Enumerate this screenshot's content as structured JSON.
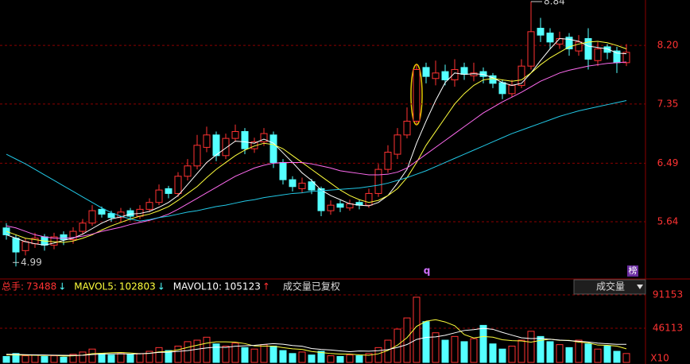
{
  "chart_data": [
    {
      "type": "candlestick",
      "open": [
        5.55,
        5.4,
        5.22,
        5.32,
        5.42,
        5.3,
        5.45,
        5.38,
        5.5,
        5.62,
        5.82,
        5.76,
        5.7,
        5.8,
        5.72,
        5.82,
        5.92,
        6.12,
        6.05,
        6.3,
        6.45,
        6.72,
        6.9,
        6.6,
        6.85,
        6.95,
        6.7,
        6.8,
        6.9,
        6.5,
        6.25,
        6.12,
        6.22,
        6.12,
        5.8,
        5.9,
        5.84,
        5.92,
        5.88,
        6.05,
        6.4,
        6.62,
        6.9,
        7.1,
        7.88,
        7.72,
        7.82,
        7.7,
        7.88,
        7.76,
        7.82,
        7.76,
        7.66,
        7.5,
        7.62,
        7.9,
        8.45,
        8.38,
        8.22,
        8.32,
        8.12,
        8.3,
        7.98,
        8.18,
        8.12,
        7.95
      ],
      "high": [
        5.62,
        5.45,
        5.4,
        5.48,
        5.46,
        5.48,
        5.5,
        5.56,
        5.68,
        5.88,
        5.86,
        5.8,
        5.84,
        5.84,
        5.88,
        5.98,
        6.18,
        6.16,
        6.36,
        6.55,
        6.9,
        7.02,
        6.95,
        6.92,
        7.05,
        7.0,
        6.86,
        7.0,
        6.95,
        6.55,
        6.3,
        6.28,
        6.26,
        6.15,
        5.95,
        5.95,
        5.96,
        5.96,
        6.12,
        6.48,
        6.75,
        7.0,
        7.3,
        7.92,
        7.95,
        7.98,
        7.92,
        8.0,
        7.95,
        7.95,
        7.88,
        7.8,
        7.7,
        7.7,
        8.0,
        8.84,
        8.6,
        8.45,
        8.4,
        8.38,
        8.35,
        8.45,
        8.25,
        8.22,
        8.18,
        8.22
      ],
      "low": [
        5.38,
        4.99,
        5.15,
        5.26,
        5.22,
        5.24,
        5.3,
        5.32,
        5.45,
        5.58,
        5.7,
        5.64,
        5.64,
        5.66,
        5.68,
        5.78,
        5.88,
        5.98,
        6.0,
        6.24,
        6.4,
        6.65,
        6.52,
        6.55,
        6.8,
        6.62,
        6.64,
        6.74,
        6.42,
        6.18,
        6.08,
        6.06,
        6.04,
        5.72,
        5.74,
        5.78,
        5.8,
        5.82,
        5.84,
        6.0,
        6.35,
        6.55,
        6.85,
        7.05,
        7.65,
        7.62,
        7.62,
        7.6,
        7.7,
        7.68,
        7.65,
        7.58,
        7.42,
        7.45,
        7.58,
        7.85,
        8.25,
        8.15,
        8.15,
        8.05,
        8.05,
        7.85,
        7.9,
        8.0,
        7.8,
        7.9
      ],
      "close": [
        5.45,
        5.2,
        5.35,
        5.4,
        5.3,
        5.42,
        5.38,
        5.5,
        5.62,
        5.8,
        5.75,
        5.7,
        5.78,
        5.72,
        5.82,
        5.92,
        6.1,
        6.05,
        6.3,
        6.45,
        6.75,
        6.9,
        6.6,
        6.85,
        6.95,
        6.7,
        6.8,
        6.92,
        6.5,
        6.25,
        6.15,
        6.2,
        6.1,
        5.8,
        5.88,
        5.85,
        5.9,
        5.88,
        6.05,
        6.4,
        6.65,
        6.9,
        7.1,
        7.85,
        7.75,
        7.8,
        7.7,
        7.85,
        7.78,
        7.8,
        7.75,
        7.65,
        7.5,
        7.62,
        7.9,
        8.4,
        8.35,
        8.25,
        8.3,
        8.15,
        8.25,
        8.0,
        8.15,
        8.1,
        7.95,
        8.1
      ],
      "up_color": "#ff3232",
      "down_color": "#54ffff",
      "ylim": [
        4.82,
        8.86
      ],
      "yticks": [
        {
          "value": 8.2,
          "label": "8.20"
        },
        7.35,
        6.49,
        5.64
      ],
      "grid": true,
      "series": [
        {
          "color": "#ffffff",
          "values": [
            5.45,
            5.4,
            5.35,
            5.32,
            5.3,
            5.33,
            5.37,
            5.4,
            5.46,
            5.54,
            5.62,
            5.68,
            5.71,
            5.75,
            5.76,
            5.79,
            5.85,
            5.92,
            6.02,
            6.18,
            6.34,
            6.5,
            6.61,
            6.71,
            6.81,
            6.8,
            6.78,
            6.84,
            6.78,
            6.64,
            6.5,
            6.35,
            6.24,
            6.1,
            6.02,
            5.96,
            5.9,
            5.88,
            5.87,
            5.92,
            6.02,
            6.2,
            6.4,
            6.78,
            7.1,
            7.4,
            7.66,
            7.8,
            7.78,
            7.79,
            7.78,
            7.73,
            7.66,
            7.62,
            7.65,
            7.8,
            7.98,
            8.15,
            8.3,
            8.29,
            8.26,
            8.19,
            8.17,
            8.15,
            8.09,
            8.08
          ]
        },
        {
          "color": "#ffff3c",
          "values": [
            5.5,
            5.45,
            5.4,
            5.38,
            5.36,
            5.35,
            5.34,
            5.36,
            5.4,
            5.45,
            5.52,
            5.58,
            5.63,
            5.68,
            5.72,
            5.75,
            5.8,
            5.86,
            5.95,
            6.05,
            6.15,
            6.28,
            6.4,
            6.5,
            6.6,
            6.68,
            6.74,
            6.78,
            6.76,
            6.7,
            6.6,
            6.5,
            6.4,
            6.3,
            6.2,
            6.1,
            6.02,
            5.96,
            5.92,
            5.95,
            6.02,
            6.12,
            6.28,
            6.5,
            6.75,
            6.95,
            7.15,
            7.35,
            7.5,
            7.62,
            7.7,
            7.72,
            7.7,
            7.68,
            7.7,
            7.8,
            7.92,
            8.02,
            8.1,
            8.18,
            8.22,
            8.25,
            8.26,
            8.24,
            8.2,
            8.15
          ]
        },
        {
          "color": "#ff6bf0",
          "values": [
            5.58,
            5.55,
            5.5,
            5.45,
            5.42,
            5.4,
            5.4,
            5.41,
            5.43,
            5.46,
            5.5,
            5.53,
            5.56,
            5.6,
            5.63,
            5.66,
            5.7,
            5.75,
            5.82,
            5.9,
            5.98,
            6.06,
            6.14,
            6.22,
            6.3,
            6.36,
            6.42,
            6.46,
            6.49,
            6.5,
            6.5,
            6.5,
            6.48,
            6.45,
            6.42,
            6.38,
            6.36,
            6.34,
            6.32,
            6.32,
            6.33,
            6.36,
            6.42,
            6.52,
            6.62,
            6.72,
            6.82,
            6.92,
            7.02,
            7.12,
            7.22,
            7.3,
            7.38,
            7.45,
            7.52,
            7.6,
            7.68,
            7.74,
            7.8,
            7.84,
            7.87,
            7.9,
            7.92,
            7.94,
            7.95,
            7.96
          ]
        },
        {
          "color": "#22c8e6",
          "values": [
            6.62,
            6.55,
            6.48,
            6.4,
            6.32,
            6.24,
            6.16,
            6.08,
            6.0,
            5.92,
            5.84,
            5.77,
            5.72,
            5.68,
            5.65,
            5.67,
            5.7,
            5.72,
            5.75,
            5.78,
            5.8,
            5.83,
            5.86,
            5.88,
            5.91,
            5.94,
            5.96,
            5.99,
            6.01,
            6.03,
            6.05,
            6.06,
            6.08,
            6.09,
            6.1,
            6.11,
            6.12,
            6.13,
            6.15,
            6.17,
            6.2,
            6.24,
            6.28,
            6.33,
            6.38,
            6.44,
            6.5,
            6.56,
            6.62,
            6.68,
            6.74,
            6.8,
            6.86,
            6.92,
            6.97,
            7.02,
            7.07,
            7.12,
            7.17,
            7.21,
            7.25,
            7.28,
            7.31,
            7.34,
            7.37,
            7.4
          ]
        }
      ],
      "high_annotation": 8.84,
      "low_annotation": 4.99,
      "markers": [
        "q",
        "榜"
      ]
    },
    {
      "type": "bar",
      "values": [
        8000,
        12000,
        9000,
        10000,
        8000,
        9000,
        7000,
        11000,
        14000,
        18000,
        12000,
        10000,
        13000,
        11000,
        12000,
        15000,
        20000,
        16000,
        22000,
        28000,
        30000,
        34000,
        25000,
        22000,
        26000,
        20000,
        18000,
        24000,
        22000,
        16000,
        12000,
        14000,
        10000,
        15000,
        9000,
        8000,
        10000,
        9000,
        12000,
        20000,
        30000,
        45000,
        60000,
        88000,
        55000,
        40000,
        30000,
        35000,
        28000,
        32000,
        50000,
        25000,
        18000,
        22000,
        30000,
        42000,
        35000,
        28000,
        24000,
        20000,
        30000,
        25000,
        18000,
        22000,
        15000,
        12000
      ],
      "ylim": [
        0,
        97600
      ],
      "yticks": [
        91153,
        46113
      ],
      "unit_label": "X10",
      "series": [
        {
          "color": "#ffff3c",
          "values": [
            10000,
            10000,
            9800,
            9600,
            9400,
            9600,
            8600,
            9000,
            9800,
            11800,
            12400,
            13000,
            13400,
            12800,
            11600,
            12200,
            14200,
            14800,
            17000,
            20200,
            23200,
            26000,
            27800,
            27800,
            27400,
            25400,
            22200,
            22000,
            22000,
            20000,
            18400,
            17600,
            14800,
            13400,
            12000,
            11200,
            11200,
            10200,
            9600,
            11600,
            16200,
            23200,
            33400,
            48600,
            55600,
            57600,
            54600,
            49600,
            37600,
            33000,
            35000,
            34000,
            30600,
            29400,
            29000,
            27400,
            29800,
            31400,
            29800,
            29800,
            27400,
            26400,
            23400,
            23000,
            22000,
            18400
          ]
        },
        {
          "color": "#ffffff",
          "values": [
            11000,
            10800,
            10500,
            10200,
            10000,
            9800,
            9600,
            9500,
            9600,
            10600,
            11200,
            11500,
            11600,
            11300,
            11700,
            12300,
            13600,
            13800,
            14900,
            16000,
            17800,
            19600,
            20600,
            20300,
            21800,
            22400,
            23100,
            24300,
            25400,
            24500,
            22800,
            21800,
            18800,
            17500,
            16700,
            15600,
            14500,
            15400,
            15200,
            15800,
            17300,
            20200,
            24100,
            31000,
            33800,
            34400,
            36600,
            39900,
            43100,
            44300,
            46000,
            44700,
            40500,
            36800,
            33300,
            32200,
            32400,
            31200,
            30100,
            29300,
            28600,
            27600,
            26000,
            25200,
            24400,
            24400
          ]
        }
      ],
      "legend": [
        {
          "label": "总手:",
          "value": 73488,
          "arrow": "↓",
          "color": "#ff3232",
          "arrow_color": "#54ffff"
        },
        {
          "label": "MAVOL5:",
          "value": 102803,
          "arrow": "↓",
          "color": "#ffff3c",
          "arrow_color": "#54ffff"
        },
        {
          "label": "MAVOL10:",
          "value": 105123,
          "arrow": "↑",
          "color": "#ffffff",
          "arrow_color": "#ff3232"
        }
      ],
      "note": "成交量已复权",
      "dropdown": "成交量"
    }
  ]
}
